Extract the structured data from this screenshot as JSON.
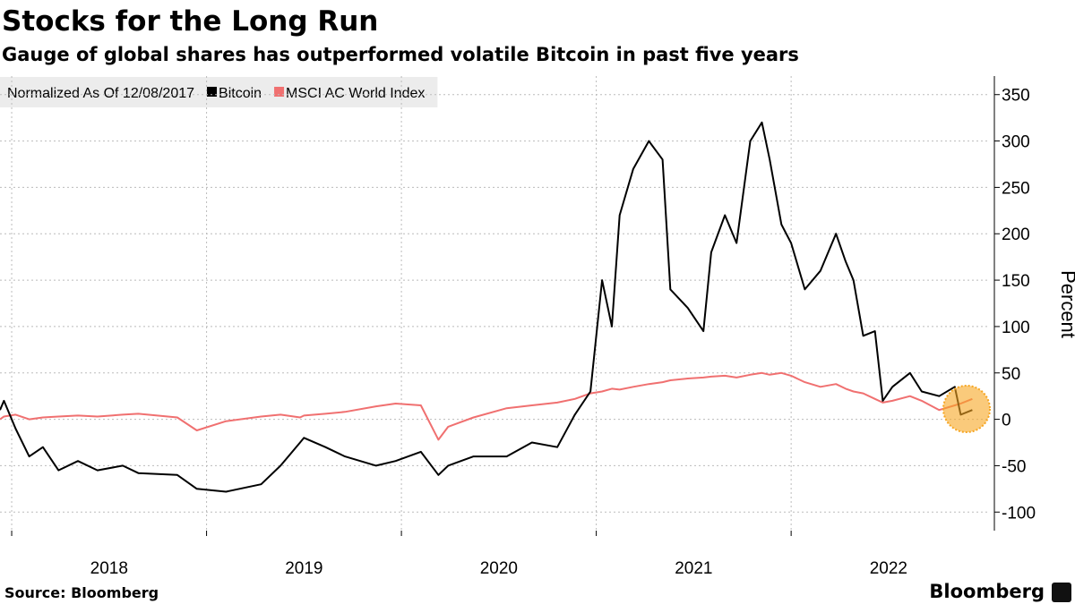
{
  "chart_data": {
    "type": "line",
    "title": "Stocks for the Long Run",
    "subtitle": "Gauge of global shares has outperformed volatile Bitcoin in past five years",
    "legend_title": "Normalized As Of 12/08/2017",
    "y_axis_label": "Percent",
    "source": "Source: Bloomberg",
    "brand": "Bloomberg",
    "x": [
      2017.94,
      2017.96,
      2018.02,
      2018.09,
      2018.16,
      2018.24,
      2018.34,
      2018.44,
      2018.57,
      2018.65,
      2018.85,
      2018.95,
      2019.1,
      2019.28,
      2019.38,
      2019.48,
      2019.5,
      2019.61,
      2019.71,
      2019.87,
      2019.97,
      2020.1,
      2020.19,
      2020.24,
      2020.37,
      2020.54,
      2020.67,
      2020.8,
      2020.89,
      2020.97,
      2021.03,
      2021.08,
      2021.12,
      2021.19,
      2021.27,
      2021.34,
      2021.38,
      2021.47,
      2021.55,
      2021.59,
      2021.66,
      2021.72,
      2021.79,
      2021.85,
      2021.89,
      2021.95,
      2022.0,
      2022.07,
      2022.15,
      2022.23,
      2022.28,
      2022.32,
      2022.37,
      2022.43,
      2022.47,
      2022.52,
      2022.61,
      2022.67,
      2022.76,
      2022.84,
      2022.87,
      2022.93
    ],
    "series": [
      {
        "name": "Bitcoin",
        "color": "#000000",
        "values": [
          10,
          20,
          -10,
          -40,
          -30,
          -55,
          -45,
          -55,
          -50,
          -58,
          -60,
          -75,
          -78,
          -70,
          -50,
          -25,
          -20,
          -30,
          -40,
          -50,
          -45,
          -35,
          -60,
          -50,
          -40,
          -40,
          -25,
          -30,
          5,
          30,
          150,
          100,
          220,
          270,
          300,
          280,
          140,
          120,
          95,
          180,
          220,
          190,
          300,
          320,
          280,
          210,
          190,
          140,
          160,
          200,
          170,
          150,
          90,
          95,
          20,
          35,
          50,
          30,
          25,
          35,
          5,
          10
        ]
      },
      {
        "name": "MSCI AC World Index",
        "color": "#f07070",
        "values": [
          0,
          3,
          5,
          0,
          2,
          3,
          4,
          3,
          5,
          6,
          2,
          -12,
          -2,
          3,
          5,
          2,
          4,
          6,
          8,
          14,
          17,
          15,
          -22,
          -8,
          2,
          12,
          15,
          18,
          22,
          28,
          30,
          33,
          32,
          35,
          38,
          40,
          42,
          44,
          45,
          46,
          47,
          45,
          48,
          50,
          48,
          50,
          47,
          40,
          35,
          38,
          33,
          30,
          28,
          22,
          18,
          20,
          25,
          20,
          10,
          15,
          17,
          22
        ]
      }
    ],
    "xlim": [
      2017.94,
      2023.02
    ],
    "xticks": [
      2018,
      2019,
      2020,
      2021,
      2022
    ],
    "ylim": [
      -120,
      370
    ],
    "yticks": [
      -100,
      -50,
      0,
      50,
      100,
      150,
      200,
      250,
      300,
      350
    ],
    "grid": true
  }
}
